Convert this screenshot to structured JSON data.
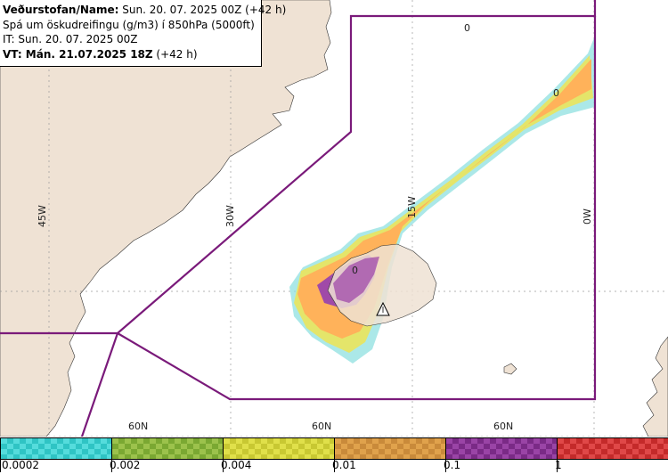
{
  "header": {
    "line1_bold": "Veðurstofan/Name:",
    "line1_rest": " Sun. 20. 07. 2025 00Z (+42 h)",
    "line2": "Spá um öskudreifingu (g/m3) í 850hPa (5000ft)",
    "line3": "IT: Sun. 20. 07. 2025 00Z",
    "line4_bold": "VT: Mán. 21.07.2025 18Z",
    "line4_rest": " (+42 h)"
  },
  "map": {
    "longitude_labels": [
      "45W",
      "30W",
      "15W",
      "0W"
    ],
    "latitude_labels": [
      "60N",
      "60N",
      "60N"
    ],
    "contour_labels": [
      "0",
      "0",
      "0"
    ],
    "volcano_icon": "volcano-triangle-icon",
    "colors": {
      "land": "#efe2d4",
      "sea": "#ffffff",
      "boundary": "#7a1a7a"
    }
  },
  "legend": {
    "classes": [
      {
        "color": "#2fc4c4",
        "check": "#55dcdc"
      },
      {
        "color": "#7aa832",
        "check": "#9cc24c"
      },
      {
        "color": "#c8c832",
        "check": "#e0e04a"
      },
      {
        "color": "#c98a3a",
        "check": "#e0a24c"
      },
      {
        "color": "#7a2a86",
        "check": "#9a44a6"
      },
      {
        "color": "#c42a2a",
        "check": "#e04848"
      }
    ],
    "thresholds": [
      "0.0002",
      "0.002",
      "0.004",
      "0.01",
      "0.1",
      "1"
    ]
  }
}
